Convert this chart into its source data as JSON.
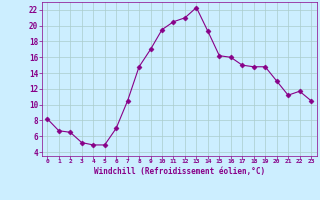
{
  "x": [
    0,
    1,
    2,
    3,
    4,
    5,
    6,
    7,
    8,
    9,
    10,
    11,
    12,
    13,
    14,
    15,
    16,
    17,
    18,
    19,
    20,
    21,
    22,
    23
  ],
  "y": [
    8.2,
    6.7,
    6.5,
    5.2,
    4.9,
    4.9,
    7.0,
    10.5,
    14.8,
    17.0,
    19.5,
    20.5,
    21.0,
    22.3,
    19.3,
    16.2,
    16.0,
    15.0,
    14.8,
    14.8,
    13.0,
    11.2,
    11.7,
    10.5
  ],
  "line_color": "#880088",
  "marker": "D",
  "marker_size": 2.5,
  "bg_color": "#cceeff",
  "grid_color": "#aacccc",
  "xlabel": "Windchill (Refroidissement éolien,°C)",
  "xlabel_color": "#880088",
  "tick_color": "#880088",
  "ylim": [
    3.5,
    23.0
  ],
  "xlim": [
    -0.5,
    23.5
  ],
  "yticks": [
    4,
    6,
    8,
    10,
    12,
    14,
    16,
    18,
    20,
    22
  ],
  "xticks": [
    0,
    1,
    2,
    3,
    4,
    5,
    6,
    7,
    8,
    9,
    10,
    11,
    12,
    13,
    14,
    15,
    16,
    17,
    18,
    19,
    20,
    21,
    22,
    23
  ],
  "xtick_labels": [
    "0",
    "1",
    "2",
    "3",
    "4",
    "5",
    "6",
    "7",
    "8",
    "9",
    "10",
    "11",
    "12",
    "13",
    "14",
    "15",
    "16",
    "17",
    "18",
    "19",
    "20",
    "21",
    "22",
    "23"
  ]
}
